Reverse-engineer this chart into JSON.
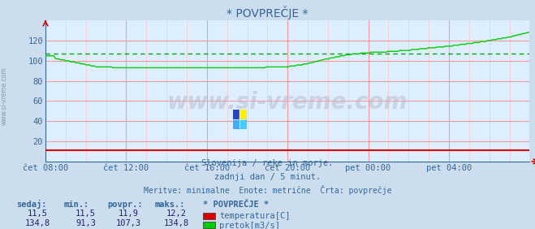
{
  "title": "* POVPREČJE *",
  "bg_color": "#ccdded",
  "plot_bg_color": "#ddeeff",
  "grid_color_v": "#ff9999",
  "grid_color_h": "#ff9999",
  "xlim": [
    0,
    24
  ],
  "ylim": [
    0,
    140
  ],
  "yticks": [
    20,
    40,
    60,
    80,
    100,
    120
  ],
  "xtick_labels": [
    "čet 08:00",
    "čet 12:00",
    "čet 16:00",
    "čet 20:00",
    "pet 00:00",
    "pet 04:00"
  ],
  "xtick_positions": [
    0,
    4,
    8,
    12,
    16,
    20
  ],
  "text_color": "#336699",
  "title_color": "#336699",
  "watermark": "www.si-vreme.com",
  "subtitle1": "Slovenija / reke in morje.",
  "subtitle2": "zadnji dan / 5 minut.",
  "subtitle3": "Meritve: minimalne  Enote: metrične  Črta: povprečje",
  "legend_title": "* POVPREČJE *",
  "legend_items": [
    {
      "label": "temperatura[C]",
      "color": "#dd0000"
    },
    {
      "label": "pretok[m3/s]",
      "color": "#00cc00"
    }
  ],
  "table_headers": [
    "sedaj:",
    "min.:",
    "povpr.:",
    "maks.:"
  ],
  "table_rows": [
    [
      "11,5",
      "11,5",
      "11,9",
      "12,2"
    ],
    [
      "134,8",
      "91,3",
      "107,3",
      "134,8"
    ]
  ],
  "flow_avg": 107.3,
  "temp_line_color": "#dd0000",
  "flow_line_color": "#00cc00",
  "avg_line_color": "#00aa00",
  "arrow_color": "#dd0000"
}
